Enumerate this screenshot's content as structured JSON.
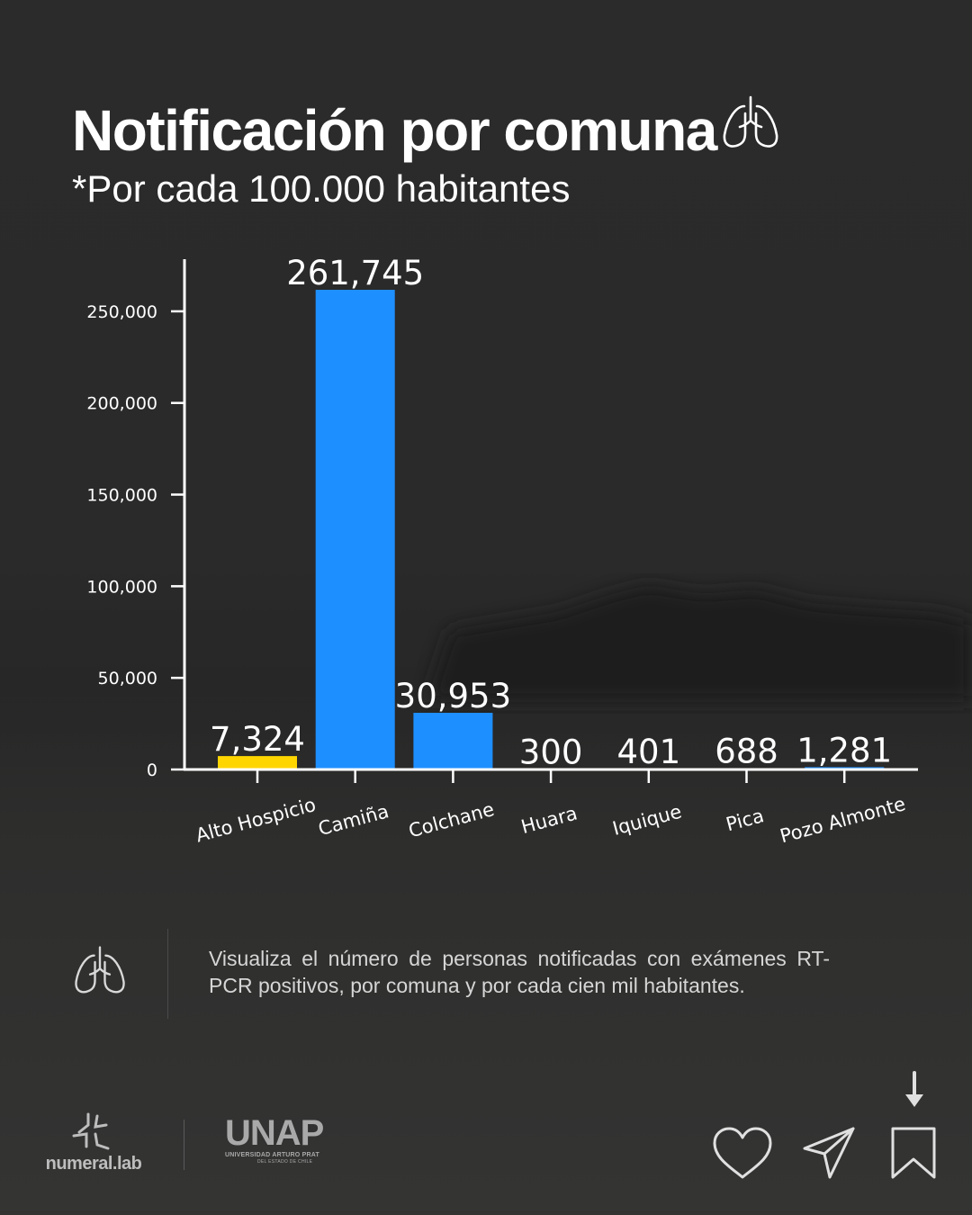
{
  "header": {
    "title": "Notificación por comuna",
    "title_icon": "lungs-icon",
    "subtitle_prefix": "*Por cada ",
    "subtitle_bold": "100.000",
    "subtitle_suffix": " habitantes"
  },
  "chart_data": {
    "type": "bar",
    "title": "",
    "xlabel": "",
    "ylabel": "",
    "categories": [
      "Alto Hospicio",
      "Camiña",
      "Colchane",
      "Huara",
      "Iquique",
      "Pica",
      "Pozo Almonte"
    ],
    "values": [
      7324,
      261745,
      30953,
      300,
      401,
      688,
      1281
    ],
    "value_labels": [
      "7,324",
      "261,745",
      "30,953",
      "300",
      "401",
      "688",
      "1,281"
    ],
    "bar_colors": [
      "#FFD500",
      "#1E8FFF",
      "#1E8FFF",
      "#1E8FFF",
      "#1E8FFF",
      "#1E8FFF",
      "#1E8FFF"
    ],
    "ylim": [
      0,
      275000
    ],
    "yticks": [
      0,
      50000,
      100000,
      150000,
      200000,
      250000
    ],
    "ytick_labels": [
      "0",
      "50,000",
      "100,000",
      "150,000",
      "200,000",
      "250,000"
    ],
    "grid": false,
    "legend": "none"
  },
  "info": {
    "icon": "lungs-icon",
    "text": "Visualiza el número de personas notificadas con exámenes RT-PCR positivos, por comuna y por cada cien mil habitantes."
  },
  "footer": {
    "logo_numeral": "numeral.lab",
    "logo_unap": "UNAP",
    "logo_unap_sub": "UNIVERSIDAD ARTURO PRAT",
    "logo_unap_sub2": "DEL ESTADO DE CHILE",
    "actions": [
      "heart-icon",
      "send-icon",
      "bookmark-icon",
      "arrow-down-icon"
    ]
  },
  "colors": {
    "background": "#2a2a2a",
    "highlight_bar": "#FFD500",
    "bar": "#1E8FFF",
    "text": "#FFFFFF"
  }
}
